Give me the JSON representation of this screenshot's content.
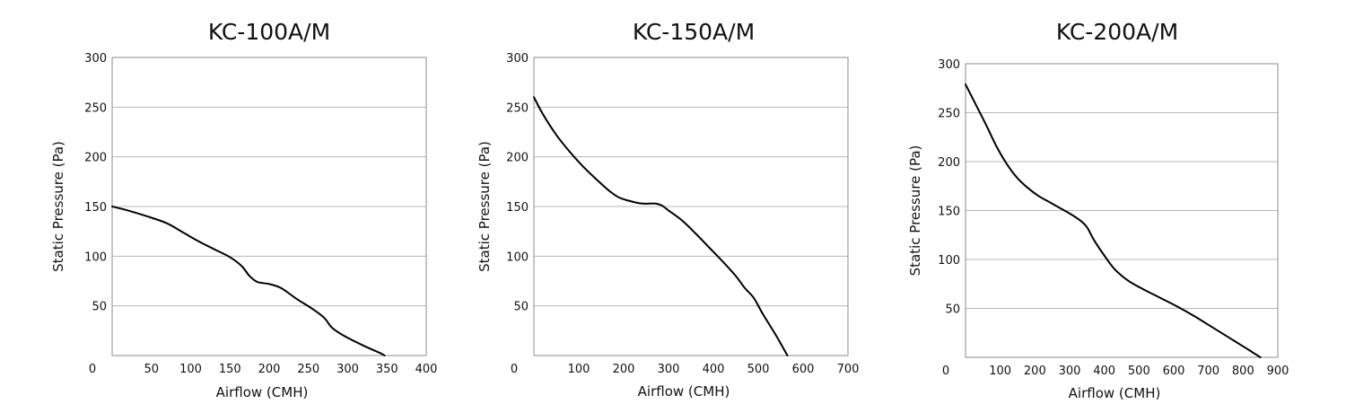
{
  "chart_data": [
    {
      "type": "line",
      "title": "KC-100A/M",
      "xlabel": "Airflow (CMH)",
      "ylabel": "Static Pressure (Pa)",
      "xlim": [
        0,
        400
      ],
      "ylim": [
        0,
        300
      ],
      "origin_label": "0",
      "x_ticks": [
        50,
        100,
        150,
        200,
        250,
        300,
        350,
        400
      ],
      "y_ticks": [
        50,
        100,
        150,
        200,
        250,
        300
      ],
      "grid": true,
      "line_color": "#000000",
      "series": [
        {
          "x": [
            0,
            20,
            45,
            70,
            90,
            110,
            130,
            150,
            165,
            175,
            185,
            200,
            215,
            235,
            255,
            270,
            280,
            295,
            320,
            340,
            347
          ],
          "y": [
            150,
            146,
            140,
            133,
            124,
            115,
            107,
            99,
            90,
            80,
            74,
            72,
            68,
            57,
            47,
            38,
            28,
            20,
            10,
            3,
            0
          ]
        }
      ]
    },
    {
      "type": "line",
      "title": "KC-150A/M",
      "xlabel": "Airflow (CMH)",
      "ylabel": "Static Pressure (Pa)",
      "xlim": [
        0,
        700
      ],
      "ylim": [
        0,
        300
      ],
      "origin_label": "0",
      "x_ticks": [
        100,
        200,
        300,
        400,
        500,
        600,
        700
      ],
      "y_ticks": [
        50,
        100,
        150,
        200,
        250,
        300
      ],
      "grid": true,
      "line_color": "#000000",
      "series": [
        {
          "x": [
            0,
            20,
            50,
            80,
            110,
            140,
            170,
            190,
            210,
            240,
            270,
            285,
            300,
            330,
            360,
            390,
            420,
            450,
            470,
            490,
            510,
            540,
            565
          ],
          "y": [
            260,
            243,
            222,
            205,
            190,
            177,
            165,
            159,
            156,
            153,
            153,
            151,
            146,
            136,
            123,
            109,
            95,
            80,
            68,
            58,
            42,
            20,
            0
          ]
        }
      ]
    },
    {
      "type": "line",
      "title": "KC-200A/M",
      "xlabel": "Airflow (CMH)",
      "ylabel": "Static Pressure (Pa)",
      "xlim": [
        0,
        900
      ],
      "ylim": [
        0,
        300
      ],
      "origin_label": "0",
      "x_ticks": [
        100,
        200,
        300,
        400,
        500,
        600,
        700,
        800,
        900
      ],
      "y_ticks": [
        50,
        100,
        150,
        200,
        250,
        300
      ],
      "grid": true,
      "line_color": "#000000",
      "series": [
        {
          "x": [
            0,
            30,
            60,
            90,
            120,
            150,
            180,
            210,
            240,
            270,
            300,
            330,
            350,
            370,
            400,
            430,
            470,
            510,
            560,
            610,
            660,
            710,
            760,
            810,
            850
          ],
          "y": [
            279,
            258,
            237,
            215,
            197,
            183,
            173,
            165,
            159,
            153,
            147,
            140,
            133,
            120,
            104,
            90,
            78,
            70,
            61,
            52,
            42,
            31,
            20,
            9,
            0
          ]
        }
      ]
    }
  ]
}
